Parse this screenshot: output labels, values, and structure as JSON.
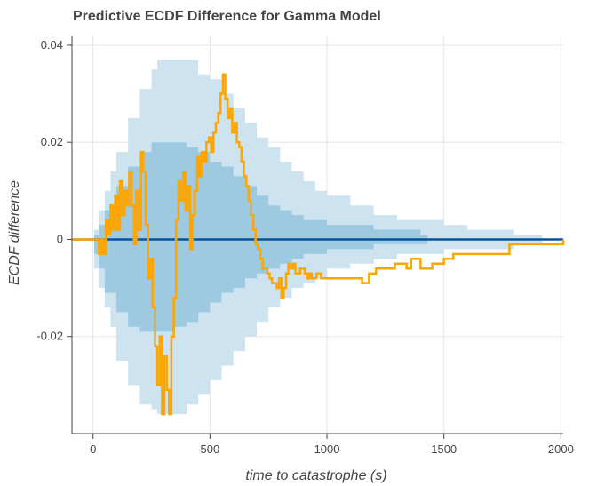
{
  "chart_data": {
    "type": "area",
    "title": "Predictive ECDF Difference for Gamma Model",
    "xlabel": "time to catastrophe (s)",
    "ylabel": "ECDF difference",
    "xlim": [
      -90,
      2010
    ],
    "ylim": [
      -0.04,
      0.042
    ],
    "x_ticks": [
      0,
      500,
      1000,
      1500,
      2000
    ],
    "x_tick_labels": [
      "0",
      "500",
      "1000",
      "1500",
      "2000"
    ],
    "y_ticks": [
      -0.02,
      0,
      0.02,
      0.04
    ],
    "y_tick_labels": [
      "-0.02",
      "0",
      "0.02",
      "0.04"
    ],
    "grid": true,
    "colors": {
      "outer_band": "#cde3f0",
      "inner_band": "#9ecae1",
      "median_line": "#08519c",
      "observed_line": "#ffa500",
      "grid": "#e5e5e5",
      "axis": "#444444"
    },
    "series": [
      {
        "kind": "band",
        "x": [
          5,
          25,
          50,
          75,
          100,
          150,
          200,
          250,
          275,
          300,
          350,
          400,
          450,
          500,
          550,
          600,
          650,
          700,
          750,
          800,
          850,
          900,
          950,
          1000,
          1100,
          1200,
          1300,
          1400,
          1500,
          1600,
          1700,
          1800,
          1900,
          1920
        ],
        "low": [
          -0.002,
          -0.006,
          -0.01,
          -0.014,
          -0.018,
          -0.025,
          -0.03,
          -0.034,
          -0.035,
          -0.036,
          -0.036,
          -0.036,
          -0.034,
          -0.032,
          -0.029,
          -0.026,
          -0.023,
          -0.02,
          -0.017,
          -0.014,
          -0.012,
          -0.01,
          -0.009,
          -0.008,
          -0.006,
          -0.005,
          -0.004,
          -0.003,
          -0.003,
          -0.002,
          -0.002,
          -0.002,
          -0.001,
          -0.001
        ],
        "high": [
          0.002,
          0.006,
          0.01,
          0.014,
          0.018,
          0.025,
          0.031,
          0.035,
          0.037,
          0.037,
          0.037,
          0.037,
          0.034,
          0.033,
          0.03,
          0.027,
          0.024,
          0.021,
          0.019,
          0.016,
          0.014,
          0.012,
          0.01,
          0.009,
          0.007,
          0.005,
          0.004,
          0.004,
          0.003,
          0.002,
          0.002,
          0.001,
          0.001,
          0.001
        ]
      },
      {
        "kind": "band",
        "x": [
          5,
          25,
          50,
          100,
          150,
          200,
          250,
          300,
          350,
          400,
          450,
          500,
          550,
          600,
          650,
          700,
          750,
          800,
          850,
          900,
          950,
          1000,
          1100,
          1200,
          1300,
          1400,
          1430
        ],
        "low": [
          -0.001,
          -0.003,
          -0.006,
          -0.011,
          -0.015,
          -0.018,
          -0.019,
          -0.019,
          -0.019,
          -0.018,
          -0.017,
          -0.015,
          -0.013,
          -0.011,
          -0.01,
          -0.008,
          -0.007,
          -0.006,
          -0.005,
          -0.004,
          -0.003,
          -0.003,
          -0.002,
          -0.002,
          -0.001,
          -0.001,
          -0.001
        ],
        "high": [
          0.001,
          0.003,
          0.006,
          0.011,
          0.015,
          0.018,
          0.02,
          0.02,
          0.02,
          0.019,
          0.018,
          0.016,
          0.015,
          0.013,
          0.011,
          0.009,
          0.007,
          0.006,
          0.005,
          0.004,
          0.004,
          0.003,
          0.003,
          0.002,
          0.002,
          0.001,
          0.001
        ]
      },
      {
        "kind": "line",
        "x": [
          -90,
          2010
        ],
        "y": [
          0,
          0
        ]
      },
      {
        "kind": "line",
        "x": [
          -90,
          25,
          35,
          45,
          55,
          65,
          75,
          85,
          95,
          105,
          115,
          125,
          135,
          145,
          155,
          165,
          175,
          185,
          195,
          205,
          215,
          225,
          235,
          245,
          255,
          265,
          275,
          285,
          295,
          305,
          315,
          325,
          335,
          345,
          355,
          365,
          375,
          385,
          395,
          405,
          415,
          425,
          435,
          445,
          455,
          465,
          475,
          485,
          495,
          505,
          515,
          525,
          535,
          545,
          555,
          565,
          575,
          585,
          595,
          605,
          615,
          625,
          635,
          645,
          655,
          665,
          675,
          685,
          695,
          705,
          715,
          725,
          735,
          745,
          755,
          765,
          775,
          785,
          795,
          805,
          815,
          825,
          835,
          845,
          855,
          865,
          875,
          885,
          895,
          905,
          915,
          925,
          935,
          945,
          955,
          965,
          975,
          990,
          1010,
          1040,
          1080,
          1110,
          1150,
          1180,
          1210,
          1250,
          1290,
          1340,
          1360,
          1400,
          1450,
          1500,
          1540,
          1600,
          1700,
          1780,
          1790,
          2010
        ],
        "y": [
          0,
          -0.003,
          0,
          -0.003,
          0.004,
          0.001,
          0.007,
          0.002,
          0.009,
          0.002,
          0.012,
          0.005,
          0.01,
          0.007,
          0.014,
          0.007,
          -0.001,
          0.01,
          0.002,
          0.018,
          0.014,
          0.003,
          -0.008,
          -0.004,
          -0.014,
          -0.022,
          -0.03,
          -0.02,
          -0.036,
          -0.024,
          -0.031,
          -0.036,
          -0.02,
          -0.012,
          0.004,
          0.012,
          0.008,
          0.014,
          0.006,
          0.011,
          -0.002,
          0.005,
          0.01,
          0.017,
          0.013,
          0.018,
          0.016,
          0.02,
          0.021,
          0.018,
          0.022,
          0.024,
          0.026,
          0.03,
          0.034,
          0.029,
          0.025,
          0.027,
          0.022,
          0.024,
          0.02,
          0.019,
          0.016,
          0.013,
          0.011,
          0.008,
          0.005,
          0.002,
          -0.001,
          -0.002,
          -0.004,
          -0.006,
          -0.006,
          -0.007,
          -0.008,
          -0.009,
          -0.009,
          -0.01,
          -0.008,
          -0.012,
          -0.01,
          -0.007,
          -0.005,
          -0.006,
          -0.005,
          -0.007,
          -0.007,
          -0.006,
          -0.006,
          -0.007,
          -0.008,
          -0.007,
          -0.008,
          -0.008,
          -0.007,
          -0.007,
          -0.008,
          -0.008,
          -0.008,
          -0.008,
          -0.008,
          -0.008,
          -0.009,
          -0.007,
          -0.006,
          -0.006,
          -0.005,
          -0.006,
          -0.004,
          -0.006,
          -0.005,
          -0.004,
          -0.003,
          -0.003,
          -0.003,
          -0.001,
          -0.001,
          0
        ],
        "step": true
      }
    ]
  }
}
